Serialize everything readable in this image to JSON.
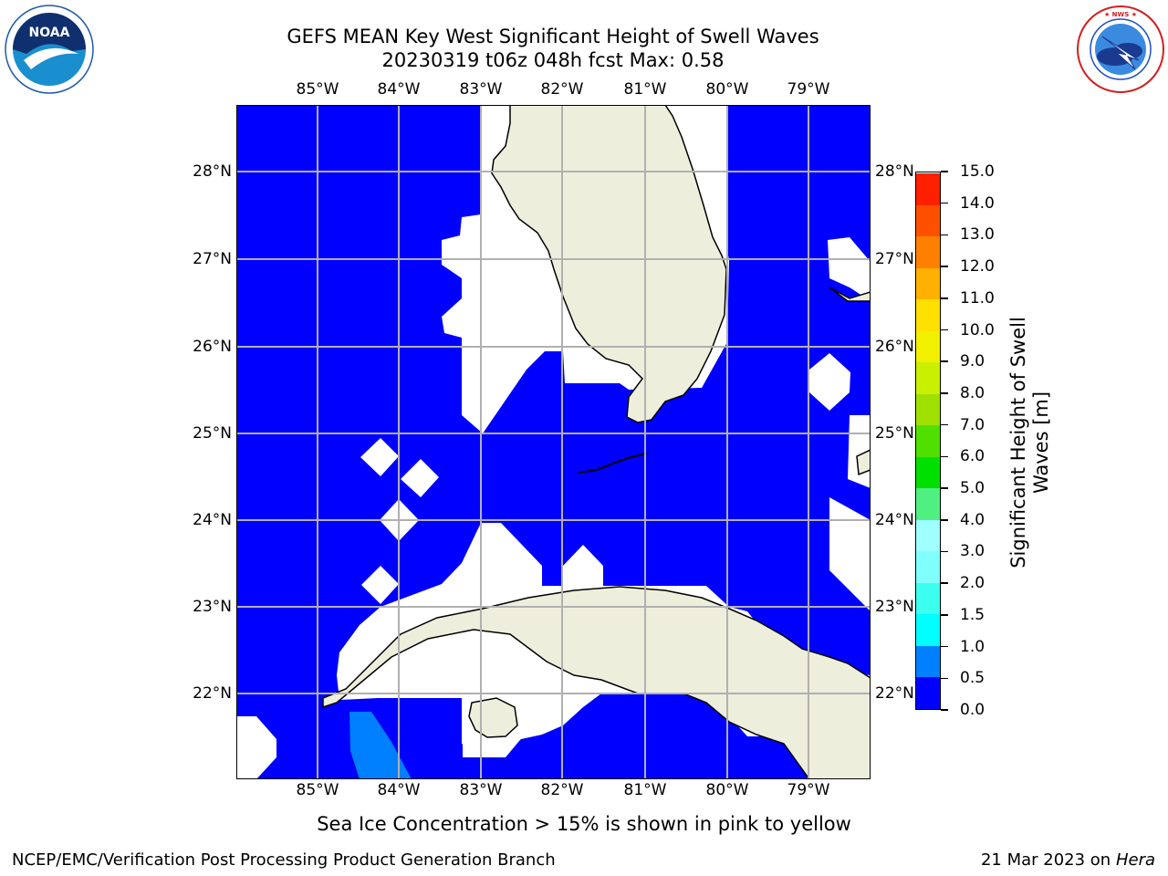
{
  "header": {
    "title_line1": "GEFS MEAN Key West Significant Height of Swell Waves",
    "title_line2": "20230319 t06z 048h fcst   Max: 0.58"
  },
  "logos": {
    "noaa": {
      "text": "NOAA",
      "ring_text": "NATIONAL OCEANIC AND ATMOSPHERIC ADMINISTRATION · U.S. DEPARTMENT OF COMMERCE"
    },
    "nws": {
      "ring_text": "NATIONAL WEATHER SERVICE"
    }
  },
  "map": {
    "longitude_labels": [
      "85°W",
      "84°W",
      "83°W",
      "82°W",
      "81°W",
      "80°W",
      "79°W"
    ],
    "latitude_labels": [
      "28°N",
      "27°N",
      "26°N",
      "25°N",
      "24°N",
      "23°N",
      "22°N"
    ],
    "colors": {
      "ocean": "#0000ff",
      "land": "#eeeedc",
      "masked": "#ffffff",
      "swell_0_5_1_0": "#0080ff",
      "grid": "#b0b0b0"
    }
  },
  "colorbar": {
    "label": "Significant Height of Swell Waves [m]",
    "tick_labels": [
      "0.0",
      "0.5",
      "1.0",
      "1.5",
      "2.0",
      "3.0",
      "4.0",
      "5.0",
      "6.0",
      "7.0",
      "8.0",
      "9.0",
      "10.0",
      "11.0",
      "12.0",
      "13.0",
      "14.0",
      "15.0"
    ],
    "colors": [
      "#0000ff",
      "#0080ff",
      "#00ffff",
      "#3cfff0",
      "#80ffff",
      "#a0ffff",
      "#50f080",
      "#00e000",
      "#50e000",
      "#a0e000",
      "#c8f000",
      "#f0f000",
      "#ffe000",
      "#ffb000",
      "#ff8000",
      "#ff5000",
      "#ff2000"
    ]
  },
  "footer": {
    "note": "Sea Ice Concentration > 15% is shown in pink to yellow",
    "credit": "NCEP/EMC/Verification Post Processing Product Generation Branch",
    "date": "21 Mar 2023 on",
    "machine": "Hera"
  }
}
